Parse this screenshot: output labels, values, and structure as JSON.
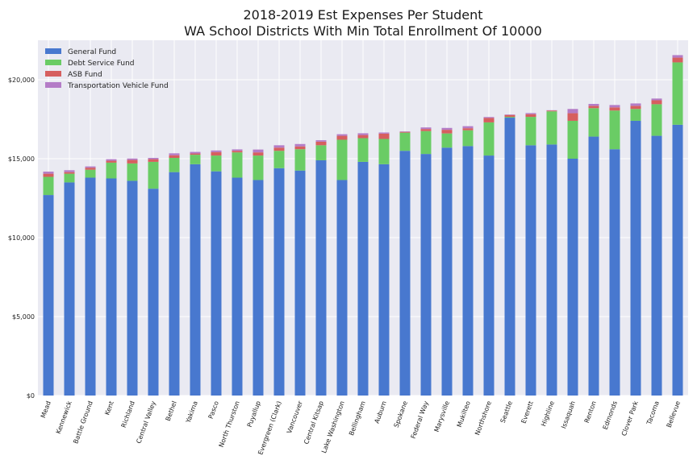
{
  "chart_data": {
    "type": "bar",
    "stacked": true,
    "title": "2018-2019 Est Expenses Per Student\nWA School Districts With Min Total Enrollment Of 10000",
    "xlabel": "",
    "ylabel": "",
    "ylim": [
      0,
      22500
    ],
    "yticks": [
      0,
      5000,
      10000,
      15000,
      20000
    ],
    "ytick_labels": [
      "$0",
      "$5,000",
      "$10,000",
      "$15,000",
      "$20,000"
    ],
    "grid": true,
    "legend_position": "top-left",
    "categories": [
      "Mead",
      "Kennewick",
      "Battle Ground",
      "Kent",
      "Richland",
      "Central Valley",
      "Bethel",
      "Yakima",
      "Pasco",
      "North Thurston",
      "Puyallup",
      "Evergreen (Clark)",
      "Vancouver",
      "Central Kitsap",
      "Lake Washington",
      "Bellingham",
      "Auburn",
      "Spokane",
      "Federal Way",
      "Marysville",
      "Mukilteo",
      "Northshore",
      "Seattle",
      "Everett",
      "Highline",
      "Issaquah",
      "Renton",
      "Edmonds",
      "Clover Park",
      "Tacoma",
      "Bellevue"
    ],
    "series": [
      {
        "name": "General Fund",
        "color": "#4878cf",
        "values": [
          12700,
          13500,
          13800,
          13750,
          13600,
          13100,
          14150,
          14650,
          14200,
          13800,
          13650,
          14400,
          14250,
          14900,
          13650,
          14800,
          14650,
          15500,
          15300,
          15700,
          15800,
          15200,
          17600,
          15850,
          15900,
          15000,
          16400,
          15600,
          17400,
          16450,
          17150
        ]
      },
      {
        "name": "Debt Service Fund",
        "color": "#6acc65",
        "values": [
          1150,
          550,
          500,
          1000,
          1100,
          1700,
          900,
          600,
          1000,
          1600,
          1550,
          1100,
          1350,
          950,
          2550,
          1500,
          1600,
          1150,
          1450,
          900,
          1000,
          2100,
          50,
          1800,
          2100,
          2400,
          1800,
          2450,
          750,
          2000,
          3950
        ]
      },
      {
        "name": "ASB Fund",
        "color": "#d65f5f",
        "values": [
          200,
          100,
          130,
          120,
          220,
          170,
          170,
          80,
          220,
          100,
          200,
          200,
          180,
          230,
          250,
          200,
          340,
          50,
          130,
          230,
          130,
          280,
          120,
          170,
          50,
          480,
          150,
          200,
          200,
          250,
          300
        ]
      },
      {
        "name": "Transportation Vehicle Fund",
        "color": "#b47cc7",
        "values": [
          130,
          120,
          80,
          100,
          90,
          80,
          120,
          100,
          100,
          90,
          180,
          150,
          150,
          90,
          100,
          110,
          70,
          30,
          100,
          120,
          130,
          60,
          30,
          70,
          20,
          270,
          120,
          150,
          150,
          110,
          160
        ]
      }
    ]
  }
}
